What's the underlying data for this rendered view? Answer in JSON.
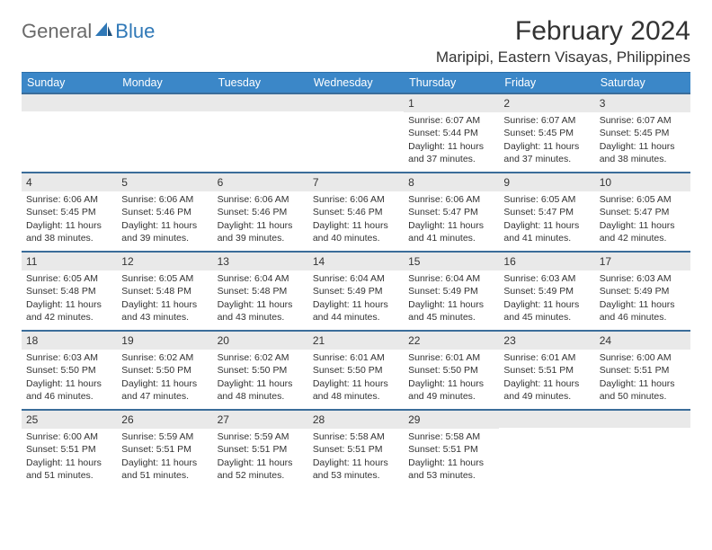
{
  "logo": {
    "general": "General",
    "blue": "Blue"
  },
  "title": "February 2024",
  "location": "Maripipi, Eastern Visayas, Philippines",
  "colors": {
    "header_bg": "#3b87c8",
    "row_divider": "#3b6d9a",
    "daynum_bg": "#e9e9e9",
    "text": "#333333",
    "logo_gray": "#6a6a6a",
    "logo_blue": "#2f78b7"
  },
  "weekdays": [
    "Sunday",
    "Monday",
    "Tuesday",
    "Wednesday",
    "Thursday",
    "Friday",
    "Saturday"
  ],
  "weeks": [
    [
      null,
      null,
      null,
      null,
      {
        "n": "1",
        "sr": "Sunrise: 6:07 AM",
        "ss": "Sunset: 5:44 PM",
        "dl": "Daylight: 11 hours and 37 minutes."
      },
      {
        "n": "2",
        "sr": "Sunrise: 6:07 AM",
        "ss": "Sunset: 5:45 PM",
        "dl": "Daylight: 11 hours and 37 minutes."
      },
      {
        "n": "3",
        "sr": "Sunrise: 6:07 AM",
        "ss": "Sunset: 5:45 PM",
        "dl": "Daylight: 11 hours and 38 minutes."
      }
    ],
    [
      {
        "n": "4",
        "sr": "Sunrise: 6:06 AM",
        "ss": "Sunset: 5:45 PM",
        "dl": "Daylight: 11 hours and 38 minutes."
      },
      {
        "n": "5",
        "sr": "Sunrise: 6:06 AM",
        "ss": "Sunset: 5:46 PM",
        "dl": "Daylight: 11 hours and 39 minutes."
      },
      {
        "n": "6",
        "sr": "Sunrise: 6:06 AM",
        "ss": "Sunset: 5:46 PM",
        "dl": "Daylight: 11 hours and 39 minutes."
      },
      {
        "n": "7",
        "sr": "Sunrise: 6:06 AM",
        "ss": "Sunset: 5:46 PM",
        "dl": "Daylight: 11 hours and 40 minutes."
      },
      {
        "n": "8",
        "sr": "Sunrise: 6:06 AM",
        "ss": "Sunset: 5:47 PM",
        "dl": "Daylight: 11 hours and 41 minutes."
      },
      {
        "n": "9",
        "sr": "Sunrise: 6:05 AM",
        "ss": "Sunset: 5:47 PM",
        "dl": "Daylight: 11 hours and 41 minutes."
      },
      {
        "n": "10",
        "sr": "Sunrise: 6:05 AM",
        "ss": "Sunset: 5:47 PM",
        "dl": "Daylight: 11 hours and 42 minutes."
      }
    ],
    [
      {
        "n": "11",
        "sr": "Sunrise: 6:05 AM",
        "ss": "Sunset: 5:48 PM",
        "dl": "Daylight: 11 hours and 42 minutes."
      },
      {
        "n": "12",
        "sr": "Sunrise: 6:05 AM",
        "ss": "Sunset: 5:48 PM",
        "dl": "Daylight: 11 hours and 43 minutes."
      },
      {
        "n": "13",
        "sr": "Sunrise: 6:04 AM",
        "ss": "Sunset: 5:48 PM",
        "dl": "Daylight: 11 hours and 43 minutes."
      },
      {
        "n": "14",
        "sr": "Sunrise: 6:04 AM",
        "ss": "Sunset: 5:49 PM",
        "dl": "Daylight: 11 hours and 44 minutes."
      },
      {
        "n": "15",
        "sr": "Sunrise: 6:04 AM",
        "ss": "Sunset: 5:49 PM",
        "dl": "Daylight: 11 hours and 45 minutes."
      },
      {
        "n": "16",
        "sr": "Sunrise: 6:03 AM",
        "ss": "Sunset: 5:49 PM",
        "dl": "Daylight: 11 hours and 45 minutes."
      },
      {
        "n": "17",
        "sr": "Sunrise: 6:03 AM",
        "ss": "Sunset: 5:49 PM",
        "dl": "Daylight: 11 hours and 46 minutes."
      }
    ],
    [
      {
        "n": "18",
        "sr": "Sunrise: 6:03 AM",
        "ss": "Sunset: 5:50 PM",
        "dl": "Daylight: 11 hours and 46 minutes."
      },
      {
        "n": "19",
        "sr": "Sunrise: 6:02 AM",
        "ss": "Sunset: 5:50 PM",
        "dl": "Daylight: 11 hours and 47 minutes."
      },
      {
        "n": "20",
        "sr": "Sunrise: 6:02 AM",
        "ss": "Sunset: 5:50 PM",
        "dl": "Daylight: 11 hours and 48 minutes."
      },
      {
        "n": "21",
        "sr": "Sunrise: 6:01 AM",
        "ss": "Sunset: 5:50 PM",
        "dl": "Daylight: 11 hours and 48 minutes."
      },
      {
        "n": "22",
        "sr": "Sunrise: 6:01 AM",
        "ss": "Sunset: 5:50 PM",
        "dl": "Daylight: 11 hours and 49 minutes."
      },
      {
        "n": "23",
        "sr": "Sunrise: 6:01 AM",
        "ss": "Sunset: 5:51 PM",
        "dl": "Daylight: 11 hours and 49 minutes."
      },
      {
        "n": "24",
        "sr": "Sunrise: 6:00 AM",
        "ss": "Sunset: 5:51 PM",
        "dl": "Daylight: 11 hours and 50 minutes."
      }
    ],
    [
      {
        "n": "25",
        "sr": "Sunrise: 6:00 AM",
        "ss": "Sunset: 5:51 PM",
        "dl": "Daylight: 11 hours and 51 minutes."
      },
      {
        "n": "26",
        "sr": "Sunrise: 5:59 AM",
        "ss": "Sunset: 5:51 PM",
        "dl": "Daylight: 11 hours and 51 minutes."
      },
      {
        "n": "27",
        "sr": "Sunrise: 5:59 AM",
        "ss": "Sunset: 5:51 PM",
        "dl": "Daylight: 11 hours and 52 minutes."
      },
      {
        "n": "28",
        "sr": "Sunrise: 5:58 AM",
        "ss": "Sunset: 5:51 PM",
        "dl": "Daylight: 11 hours and 53 minutes."
      },
      {
        "n": "29",
        "sr": "Sunrise: 5:58 AM",
        "ss": "Sunset: 5:51 PM",
        "dl": "Daylight: 11 hours and 53 minutes."
      },
      null,
      null
    ]
  ]
}
